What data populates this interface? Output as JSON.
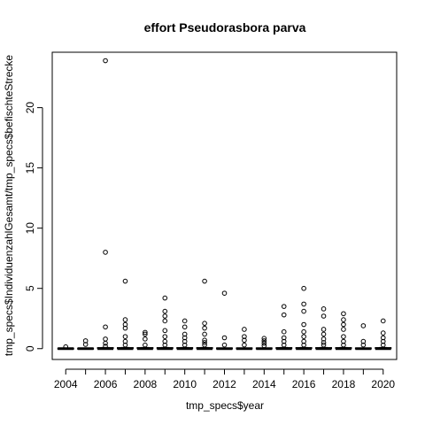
{
  "chart_data": {
    "type": "boxplot",
    "title": "effort Pseudorasbora parva",
    "xlabel": "tmp_specs$year",
    "ylabel": "tmp_specs$IndividuenzahlGesamt/tmp_specs$befischteStrecke",
    "x_tick_labels": [
      "2004",
      "2006",
      "2008",
      "2010",
      "2012",
      "2014",
      "2016",
      "2018",
      "2020"
    ],
    "y_tick_labels": [
      "0",
      "5",
      "10",
      "15",
      "20"
    ],
    "ylim": [
      -0.9,
      24.6
    ],
    "grid": false,
    "legend": "none",
    "categories": [
      "2004",
      "2005",
      "2006",
      "2007",
      "2008",
      "2009",
      "2010",
      "2011",
      "2012",
      "2013",
      "2014",
      "2015",
      "2016",
      "2017",
      "2018",
      "2019",
      "2020"
    ],
    "boxes": [
      {
        "year": "2004",
        "q1": 0,
        "median": 0,
        "q3": 0,
        "whisker_low": 0,
        "whisker_high": 0.02,
        "outliers": [
          0.15
        ]
      },
      {
        "year": "2005",
        "q1": 0,
        "median": 0,
        "q3": 0,
        "whisker_low": 0,
        "whisker_high": 0.02,
        "outliers": [
          0.35,
          0.65
        ]
      },
      {
        "year": "2006",
        "q1": 0,
        "median": 0,
        "q3": 0.05,
        "whisker_low": 0,
        "whisker_high": 0.1,
        "outliers": [
          0.2,
          0.45,
          0.8,
          1.8,
          8.0,
          23.9
        ]
      },
      {
        "year": "2007",
        "q1": 0,
        "median": 0,
        "q3": 0.05,
        "whisker_low": 0,
        "whisker_high": 0.1,
        "outliers": [
          0.3,
          0.6,
          1.0,
          1.7,
          2.0,
          2.4,
          5.6
        ]
      },
      {
        "year": "2008",
        "q1": 0,
        "median": 0,
        "q3": 0.05,
        "whisker_low": 0,
        "whisker_high": 0.1,
        "outliers": [
          0.3,
          0.8,
          1.2,
          1.35
        ]
      },
      {
        "year": "2009",
        "q1": 0,
        "median": 0,
        "q3": 0.05,
        "whisker_low": 0,
        "whisker_high": 0.1,
        "outliers": [
          0.3,
          0.6,
          1.0,
          1.5,
          2.3,
          2.7,
          3.1,
          4.2
        ]
      },
      {
        "year": "2010",
        "q1": 0,
        "median": 0,
        "q3": 0.05,
        "whisker_low": 0,
        "whisker_high": 0.1,
        "outliers": [
          0.3,
          0.6,
          0.9,
          1.2,
          1.8,
          2.3
        ]
      },
      {
        "year": "2011",
        "q1": 0,
        "median": 0,
        "q3": 0.05,
        "whisker_low": 0,
        "whisker_high": 0.1,
        "outliers": [
          0.3,
          0.5,
          0.7,
          1.2,
          1.7,
          2.1,
          5.6
        ]
      },
      {
        "year": "2012",
        "q1": 0,
        "median": 0,
        "q3": 0.02,
        "whisker_low": 0,
        "whisker_high": 0.05,
        "outliers": [
          0.3,
          0.9,
          4.6
        ]
      },
      {
        "year": "2013",
        "q1": 0,
        "median": 0,
        "q3": 0.02,
        "whisker_low": 0,
        "whisker_high": 0.05,
        "outliers": [
          0.3,
          0.7,
          1.0,
          1.6
        ]
      },
      {
        "year": "2014",
        "q1": 0,
        "median": 0,
        "q3": 0.02,
        "whisker_low": 0,
        "whisker_high": 0.05,
        "outliers": [
          0.25,
          0.45,
          0.65,
          0.85
        ]
      },
      {
        "year": "2015",
        "q1": 0,
        "median": 0,
        "q3": 0.05,
        "whisker_low": 0,
        "whisker_high": 0.1,
        "outliers": [
          0.3,
          0.6,
          0.9,
          1.4,
          2.8,
          3.5
        ]
      },
      {
        "year": "2016",
        "q1": 0,
        "median": 0,
        "q3": 0.05,
        "whisker_low": 0,
        "whisker_high": 0.1,
        "outliers": [
          0.3,
          0.6,
          1.0,
          1.4,
          2.0,
          3.1,
          3.7,
          5.0
        ]
      },
      {
        "year": "2017",
        "q1": 0,
        "median": 0,
        "q3": 0.05,
        "whisker_low": 0,
        "whisker_high": 0.1,
        "outliers": [
          0.3,
          0.5,
          0.8,
          1.2,
          1.6,
          2.7,
          3.3
        ]
      },
      {
        "year": "2018",
        "q1": 0,
        "median": 0,
        "q3": 0.05,
        "whisker_low": 0,
        "whisker_high": 0.1,
        "outliers": [
          0.3,
          0.6,
          1.0,
          1.6,
          2.0,
          2.4,
          2.9
        ]
      },
      {
        "year": "2019",
        "q1": 0,
        "median": 0,
        "q3": 0.02,
        "whisker_low": 0,
        "whisker_high": 0.05,
        "outliers": [
          0.3,
          0.6,
          1.9
        ]
      },
      {
        "year": "2020",
        "q1": 0,
        "median": 0,
        "q3": 0.05,
        "whisker_low": 0,
        "whisker_high": 0.1,
        "outliers": [
          0.3,
          0.6,
          0.9,
          1.3,
          2.3
        ]
      }
    ]
  }
}
